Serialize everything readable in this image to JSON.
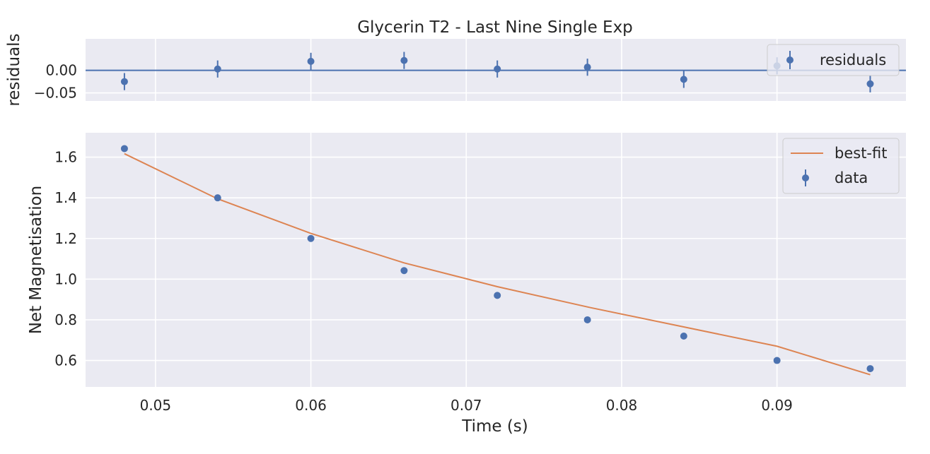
{
  "chart_data": [
    {
      "type": "scatter",
      "title": "Glycerin T2 - Last Nine Single Exp",
      "xlabel": "",
      "ylabel": "residuals",
      "xlim": [
        0.0455,
        0.0983
      ],
      "ylim": [
        -0.068,
        0.07
      ],
      "x_ticks": [
        0.05,
        0.06,
        0.07,
        0.08,
        0.09
      ],
      "y_ticks": [
        0.0,
        -0.05
      ],
      "y_tick_labels": [
        "0.00",
        "−0.05"
      ],
      "grid": true,
      "reference_line_y": 0.0,
      "legend_position": "top-right",
      "series": [
        {
          "name": "residuals",
          "style": "errorbar",
          "x": [
            0.048,
            0.054,
            0.06,
            0.066,
            0.072,
            0.0778,
            0.084,
            0.09,
            0.096
          ],
          "y": [
            -0.025,
            0.003,
            0.02,
            0.022,
            0.003,
            0.007,
            -0.02,
            0.01,
            -0.03
          ],
          "yerr": [
            0.019,
            0.019,
            0.019,
            0.019,
            0.019,
            0.019,
            0.019,
            0.019,
            0.019
          ]
        }
      ]
    },
    {
      "type": "scatter",
      "title": "",
      "xlabel": "Time (s)",
      "ylabel": "Net Magnetisation",
      "xlim": [
        0.0455,
        0.0983
      ],
      "ylim": [
        0.47,
        1.72
      ],
      "x_ticks": [
        0.05,
        0.06,
        0.07,
        0.08,
        0.09
      ],
      "x_tick_labels": [
        "0.05",
        "0.06",
        "0.07",
        "0.08",
        "0.09"
      ],
      "y_ticks": [
        0.6,
        0.8,
        1.0,
        1.2,
        1.4,
        1.6
      ],
      "y_tick_labels": [
        "0.6",
        "0.8",
        "1.0",
        "1.2",
        "1.4",
        "1.6"
      ],
      "grid": true,
      "legend_position": "top-right",
      "series": [
        {
          "name": "best-fit",
          "style": "line",
          "color": "#dd8452",
          "x": [
            0.048,
            0.054,
            0.06,
            0.066,
            0.072,
            0.078,
            0.084,
            0.09,
            0.096
          ],
          "y": [
            1.617,
            1.395,
            1.225,
            1.08,
            0.963,
            0.86,
            0.765,
            0.67,
            0.53
          ]
        },
        {
          "name": "data",
          "style": "errorbar",
          "color": "#4c72b0",
          "x": [
            0.048,
            0.054,
            0.06,
            0.066,
            0.072,
            0.0778,
            0.084,
            0.09,
            0.096
          ],
          "y": [
            1.642,
            1.4,
            1.2,
            1.042,
            0.92,
            0.8,
            0.72,
            0.6,
            0.56
          ],
          "yerr": [
            0.015,
            0.015,
            0.013,
            0.015,
            0.015,
            0.013,
            0.013,
            0.015,
            0.015
          ]
        }
      ]
    }
  ],
  "colors": {
    "axes_background": "#eaeaf2",
    "grid": "#ffffff",
    "data_blue": "#4c72b0",
    "fit_orange": "#dd8452"
  }
}
